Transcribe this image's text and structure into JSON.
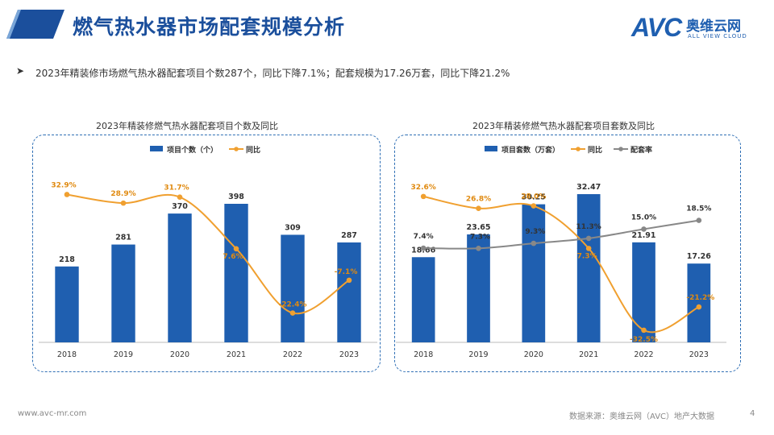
{
  "header": {
    "title": "燃气热水器市场配套规模分析",
    "logo_text": "AVC",
    "logo_cn": "奥维云网",
    "logo_en": "ALL VIEW CLOUD"
  },
  "summary": "2023年精装修市场燃气热水器配套项目个数287个，同比下降7.1%；配套规模为17.26万套，同比下降21.2%",
  "footer": {
    "website": "www.avc-mr.com",
    "source": "数据来源：奥维云网（AVC）地产大数据",
    "page": "4"
  },
  "colors": {
    "bar": "#1f5fb0",
    "line_yoy": "#f0a030",
    "line_rate": "#888888",
    "frame": "#2f6fb5"
  },
  "chart_data": [
    {
      "type": "bar",
      "title": "2023年精装修燃气热水器配套项目个数及同比",
      "categories": [
        "2018",
        "2019",
        "2020",
        "2021",
        "2022",
        "2023"
      ],
      "series": [
        {
          "name": "项目个数（个）",
          "type": "bar",
          "values": [
            218,
            281,
            370,
            398,
            309,
            287
          ],
          "labels": [
            "218",
            "281",
            "370",
            "398",
            "309",
            "287"
          ]
        },
        {
          "name": "同比",
          "type": "line",
          "values": [
            32.9,
            28.9,
            31.7,
            7.6,
            -22.4,
            -7.1
          ],
          "labels": [
            "32.9%",
            "28.9%",
            "31.7%",
            "7.6%",
            "-22.4%",
            "-7.1%"
          ]
        }
      ],
      "legend": "top-center"
    },
    {
      "type": "bar",
      "title": "2023年精装修燃气热水器配套项目套数及同比",
      "categories": [
        "2018",
        "2019",
        "2020",
        "2021",
        "2022",
        "2023"
      ],
      "series": [
        {
          "name": "项目套数（万套）",
          "type": "bar",
          "values": [
            18.66,
            23.65,
            30.25,
            32.47,
            21.91,
            17.26
          ],
          "labels": [
            "18.66",
            "23.65",
            "30.25",
            "32.47",
            "21.91",
            "17.26"
          ]
        },
        {
          "name": "同比",
          "type": "line",
          "values": [
            32.6,
            26.8,
            28.0,
            7.3,
            -32.5,
            -21.2
          ],
          "labels": [
            "32.6%",
            "26.8%",
            "28.0%",
            "7.3%",
            "-32.5%",
            "-21.2%"
          ]
        },
        {
          "name": "配套率",
          "type": "line",
          "values": [
            7.4,
            7.3,
            9.3,
            11.3,
            15.0,
            18.5
          ],
          "labels": [
            "7.4%",
            "7.3%",
            "9.3%",
            "11.3%",
            "15.0%",
            "18.5%"
          ]
        }
      ],
      "legend": "top-center"
    }
  ]
}
